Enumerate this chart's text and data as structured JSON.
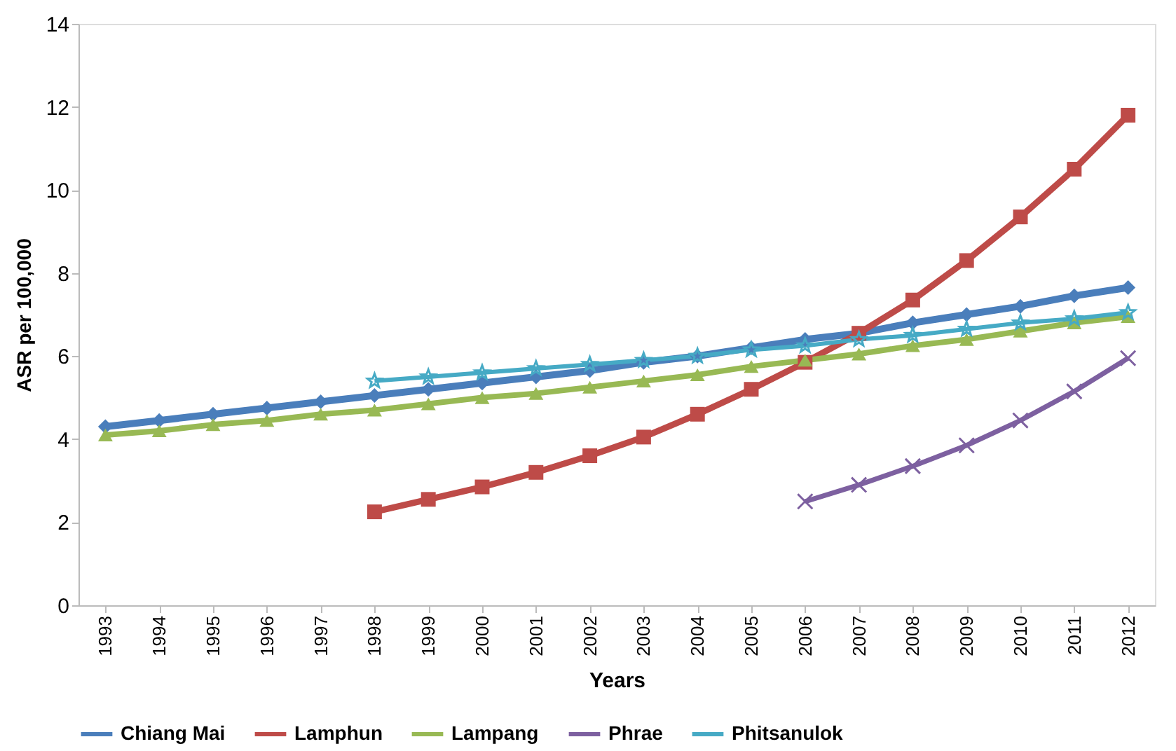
{
  "chart_data": {
    "type": "line",
    "xlabel": "Years",
    "ylabel": "ASR per 100,000",
    "categories": [
      "1993",
      "1994",
      "1995",
      "1996",
      "1997",
      "1998",
      "1999",
      "2000",
      "2001",
      "2002",
      "2003",
      "2004",
      "2005",
      "2006",
      "2007",
      "2008",
      "2009",
      "2010",
      "2011",
      "2012"
    ],
    "ylim": [
      0,
      14
    ],
    "yticks": [
      0,
      2,
      4,
      6,
      8,
      10,
      12,
      14
    ],
    "grid": false,
    "legend": "bottom",
    "series": [
      {
        "name": "Chiang Mai",
        "color": "#4a7ebb",
        "marker": "diamond",
        "values": [
          4.3,
          4.45,
          4.6,
          4.75,
          4.9,
          5.05,
          5.2,
          5.35,
          5.5,
          5.65,
          5.85,
          6.0,
          6.2,
          6.4,
          6.55,
          6.8,
          7.0,
          7.2,
          7.45,
          7.65
        ]
      },
      {
        "name": "Lamphun",
        "color": "#be4b48",
        "marker": "square",
        "values": [
          null,
          null,
          null,
          null,
          null,
          2.25,
          2.55,
          2.85,
          3.2,
          3.6,
          4.05,
          4.6,
          5.2,
          5.85,
          6.55,
          7.35,
          8.3,
          9.35,
          10.5,
          11.8
        ]
      },
      {
        "name": "Lampang",
        "color": "#98b954",
        "marker": "triangle",
        "values": [
          4.1,
          4.2,
          4.35,
          4.45,
          4.6,
          4.7,
          4.85,
          5.0,
          5.1,
          5.25,
          5.4,
          5.55,
          5.75,
          5.9,
          6.05,
          6.25,
          6.4,
          6.6,
          6.8,
          6.95
        ]
      },
      {
        "name": "Phrae",
        "color": "#7d60a0",
        "marker": "cross",
        "values": [
          null,
          null,
          null,
          null,
          null,
          null,
          null,
          null,
          null,
          null,
          null,
          null,
          null,
          2.5,
          2.9,
          3.35,
          3.85,
          4.45,
          5.15,
          5.95
        ]
      },
      {
        "name": "Phitsanulok",
        "color": "#46aac5",
        "marker": "star",
        "values": [
          null,
          null,
          null,
          null,
          null,
          5.4,
          5.5,
          5.6,
          5.7,
          5.8,
          5.9,
          6.0,
          6.15,
          6.25,
          6.4,
          6.5,
          6.65,
          6.8,
          6.9,
          7.05
        ]
      }
    ]
  }
}
